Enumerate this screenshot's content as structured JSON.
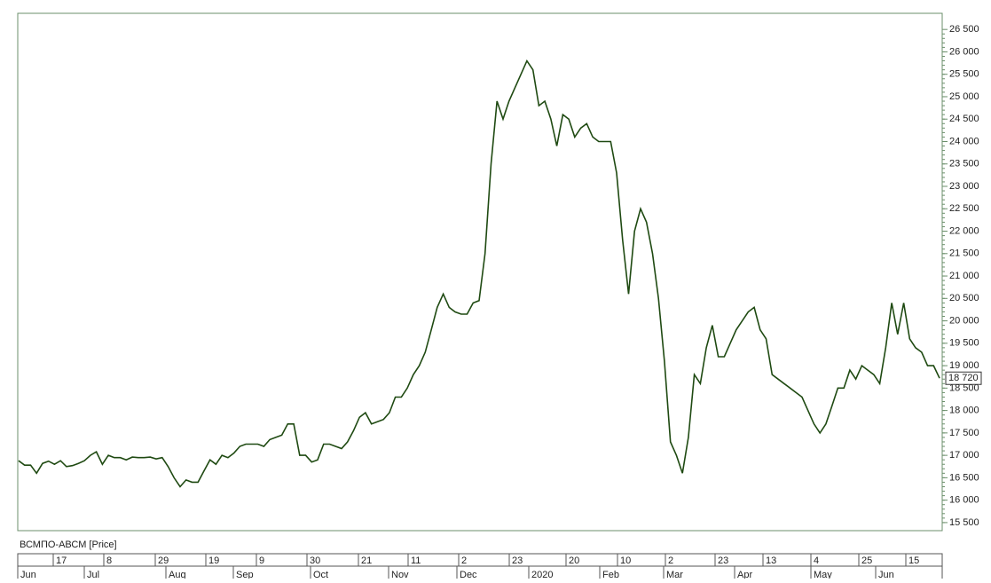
{
  "chart_data": {
    "type": "line",
    "label": "ВСМПО-АВСМ [Price]",
    "series": [
      {
        "name": "ВСМПО-АВСМ",
        "color": "#1f4a12",
        "values": [
          16880,
          16780,
          16780,
          16600,
          16820,
          16870,
          16800,
          16880,
          16750,
          16770,
          16820,
          16880,
          17000,
          17080,
          16800,
          17000,
          16950,
          16950,
          16900,
          16960,
          16950,
          16950,
          16960,
          16920,
          16950,
          16750,
          16500,
          16300,
          16450,
          16400,
          16400,
          16650,
          16900,
          16800,
          17000,
          16950,
          17050,
          17200,
          17250,
          17250,
          17250,
          17200,
          17350,
          17400,
          17450,
          17700,
          17700,
          17000,
          17000,
          16850,
          16900,
          17250,
          17250,
          17200,
          17150,
          17300,
          17550,
          17850,
          17950,
          17700,
          17750,
          17800,
          17950,
          18300,
          18300,
          18500,
          18800,
          19000,
          19300,
          19800,
          20300,
          20600,
          20300,
          20200,
          20150,
          20150,
          20400,
          20450,
          21500,
          23500,
          24900,
          24500,
          24900,
          25200,
          25500,
          25800,
          25600,
          24800,
          24900,
          24500,
          23900,
          24600,
          24500,
          24100,
          24300,
          24400,
          24100,
          24000,
          24000,
          24000,
          23300,
          21800,
          20600,
          22000,
          22500,
          22200,
          21500,
          20500,
          19100,
          17300,
          17000,
          16600,
          17400,
          18800,
          18600,
          19400,
          19900,
          19200,
          19200,
          19500,
          19800,
          20000,
          20200,
          20300,
          19800,
          19600,
          18800,
          18700,
          18600,
          18500,
          18400,
          18300,
          18000,
          17700,
          17500,
          17700,
          18100,
          18500,
          18500,
          18900,
          18700,
          19000,
          18900,
          18800,
          18600,
          19400,
          20400,
          19700,
          20400,
          19600,
          19400,
          19300,
          19000,
          19000,
          18720
        ]
      }
    ],
    "last_label": "18 720",
    "ylim": [
      15320,
      26860
    ],
    "yticks": [
      {
        "value": 15500,
        "label": "15 500"
      },
      {
        "value": 16000,
        "label": "16 000"
      },
      {
        "value": 16500,
        "label": "16 500"
      },
      {
        "value": 17000,
        "label": "17 000"
      },
      {
        "value": 17500,
        "label": "17 500"
      },
      {
        "value": 18000,
        "label": "18 000"
      },
      {
        "value": 18500,
        "label": "18 500"
      },
      {
        "value": 19000,
        "label": "19 000"
      },
      {
        "value": 19500,
        "label": "19 500"
      },
      {
        "value": 20000,
        "label": "20 000"
      },
      {
        "value": 20500,
        "label": "20 500"
      },
      {
        "value": 21000,
        "label": "21 000"
      },
      {
        "value": 21500,
        "label": "21 500"
      },
      {
        "value": 22000,
        "label": "22 000"
      },
      {
        "value": 22500,
        "label": "22 500"
      },
      {
        "value": 23000,
        "label": "23 000"
      },
      {
        "value": 23500,
        "label": "23 500"
      },
      {
        "value": 24000,
        "label": "24 000"
      },
      {
        "value": 24500,
        "label": "24 500"
      },
      {
        "value": 25000,
        "label": "25 000"
      },
      {
        "value": 25500,
        "label": "25 500"
      },
      {
        "value": 26000,
        "label": "26 000"
      },
      {
        "value": 26500,
        "label": "26 500"
      }
    ],
    "days": [
      "17",
      "8",
      "29",
      "19",
      "9",
      "30",
      "21",
      "11",
      "2",
      "23",
      "20",
      "10",
      "2",
      "23",
      "13",
      "4",
      "25",
      "15"
    ],
    "months": [
      "Jun",
      "Jul",
      "Aug",
      "Sep",
      "Oct",
      "Nov",
      "Dec",
      "2020",
      "Feb",
      "Mar",
      "Apr",
      "May",
      "Jun"
    ]
  }
}
